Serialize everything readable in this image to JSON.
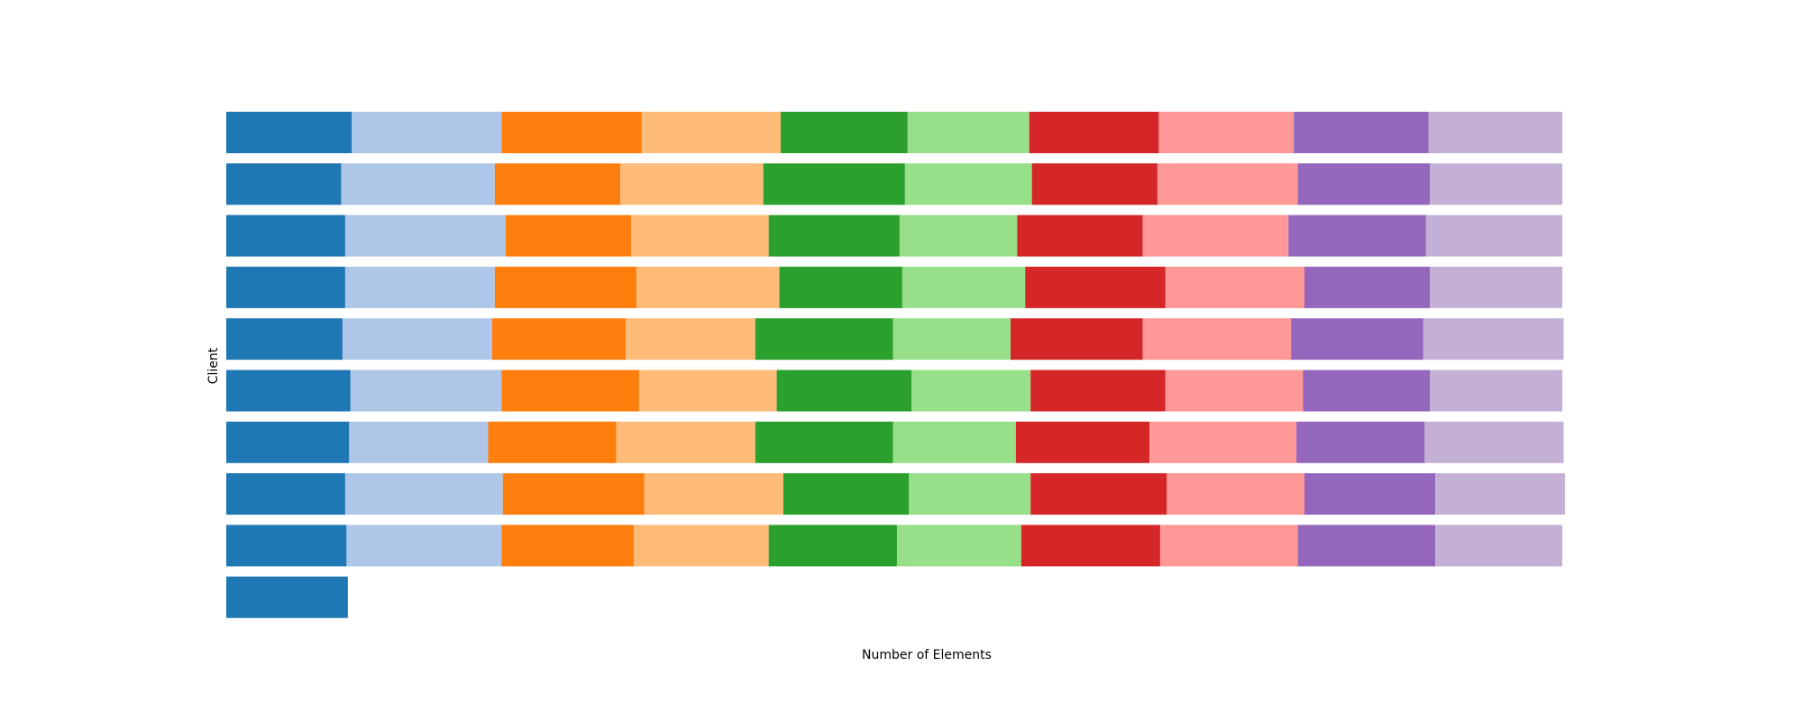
{
  "chart_data": {
    "type": "bar",
    "orientation": "horizontal",
    "stacked": true,
    "xlabel": "Number of Elements",
    "ylabel": "Client",
    "title": "",
    "axes_visible": false,
    "grid": false,
    "xlim": [
      0,
      1.0
    ],
    "rows": 10,
    "colors": [
      "#1f77b4",
      "#aec7e8",
      "#ff7f0e",
      "#ffbb78",
      "#2ca02c",
      "#98df8a",
      "#d62728",
      "#ff9896",
      "#9467bd",
      "#c5b0d5"
    ],
    "series": [
      {
        "values": [
          0.094,
          0.086,
          0.089,
          0.089,
          0.087,
          0.093,
          0.092,
          0.089,
          0.09,
          0.091
        ]
      },
      {
        "values": [
          0.112,
          0.115,
          0.12,
          0.112,
          0.112,
          0.113,
          0.104,
          0.118,
          0.116,
          0
        ]
      },
      {
        "values": [
          0.105,
          0.094,
          0.094,
          0.106,
          0.1,
          0.103,
          0.096,
          0.106,
          0.099,
          0
        ]
      },
      {
        "values": [
          0.104,
          0.107,
          0.103,
          0.107,
          0.097,
          0.103,
          0.104,
          0.104,
          0.101,
          0
        ]
      },
      {
        "values": [
          0.095,
          0.106,
          0.098,
          0.092,
          0.103,
          0.101,
          0.103,
          0.094,
          0.096,
          0
        ]
      },
      {
        "values": [
          0.091,
          0.095,
          0.088,
          0.092,
          0.088,
          0.089,
          0.092,
          0.091,
          0.093,
          0
        ]
      },
      {
        "values": [
          0.097,
          0.094,
          0.094,
          0.105,
          0.099,
          0.101,
          0.1,
          0.102,
          0.104,
          0
        ]
      },
      {
        "values": [
          0.101,
          0.105,
          0.109,
          0.104,
          0.111,
          0.103,
          0.11,
          0.103,
          0.103,
          0
        ]
      },
      {
        "values": [
          0.101,
          0.099,
          0.103,
          0.094,
          0.099,
          0.095,
          0.096,
          0.098,
          0.103,
          0
        ]
      },
      {
        "values": [
          0.1,
          0.099,
          0.102,
          0.099,
          0.105,
          0.099,
          0.104,
          0.097,
          0.095,
          0
        ]
      }
    ]
  }
}
